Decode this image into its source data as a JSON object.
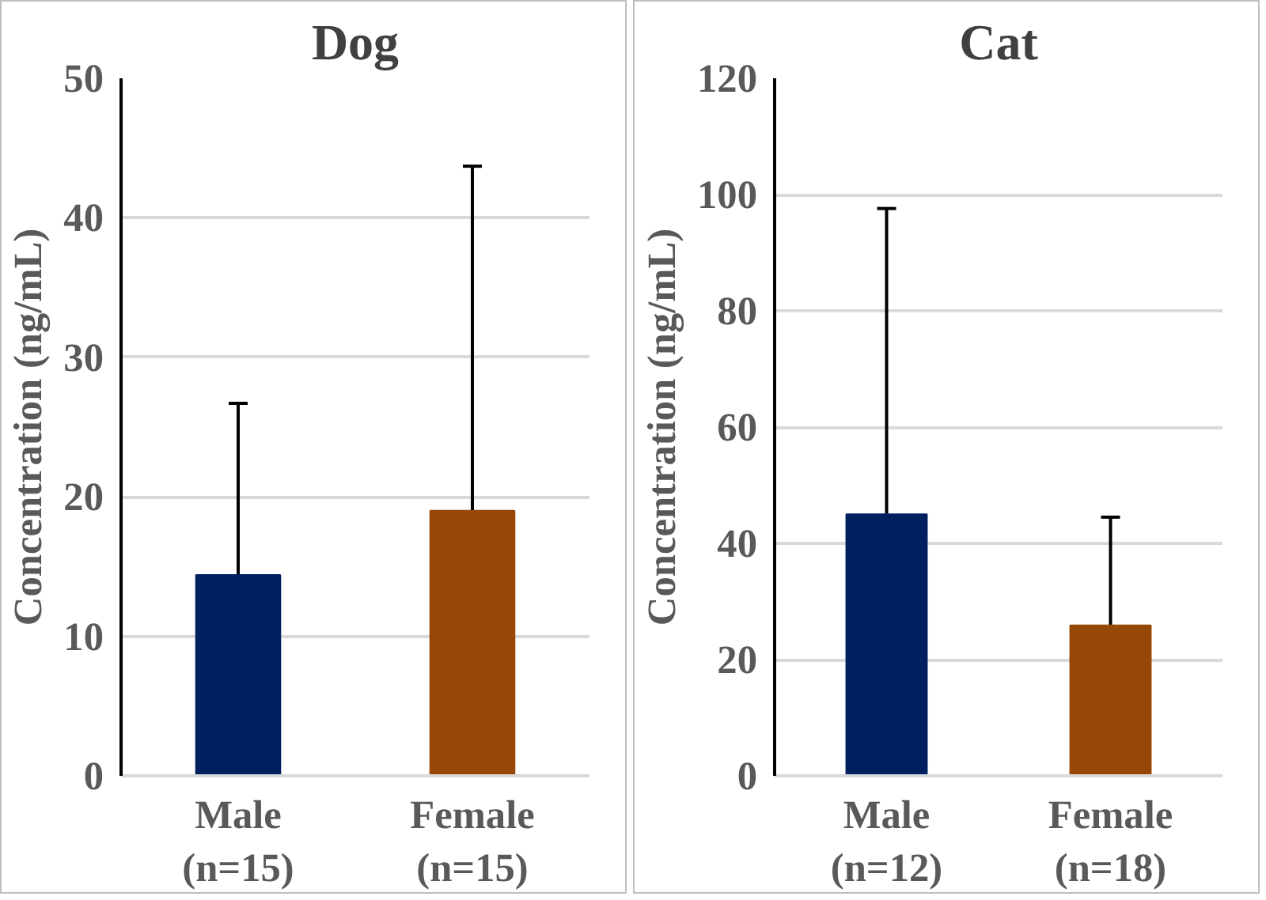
{
  "chart_data": [
    {
      "type": "bar",
      "title": "Dog",
      "ylabel": "Concentration (ng/mL)",
      "categories": [
        "Male\n(n=15)",
        "Female\n(n=15)"
      ],
      "values": [
        14.4,
        19.0
      ],
      "colors": [
        "#002060",
        "#974706"
      ],
      "errors": [
        [
          14.4,
          26.7
        ],
        [
          19.0,
          43.7
        ]
      ],
      "ylim": [
        0,
        50
      ],
      "yticks": [
        0,
        10,
        20,
        30,
        40,
        50
      ],
      "grid": "y"
    },
    {
      "type": "bar",
      "title": "Cat",
      "ylabel": "Concentration (ng/mL)",
      "categories": [
        "Male\n(n=12)",
        "Female\n(n=18)"
      ],
      "values": [
        45.0,
        25.9
      ],
      "colors": [
        "#002060",
        "#974706"
      ],
      "errors": [
        [
          45.0,
          97.6
        ],
        [
          25.9,
          44.5
        ]
      ],
      "ylim": [
        0,
        120
      ],
      "yticks": [
        0,
        20,
        40,
        60,
        80,
        100,
        120
      ],
      "grid": "y"
    }
  ]
}
